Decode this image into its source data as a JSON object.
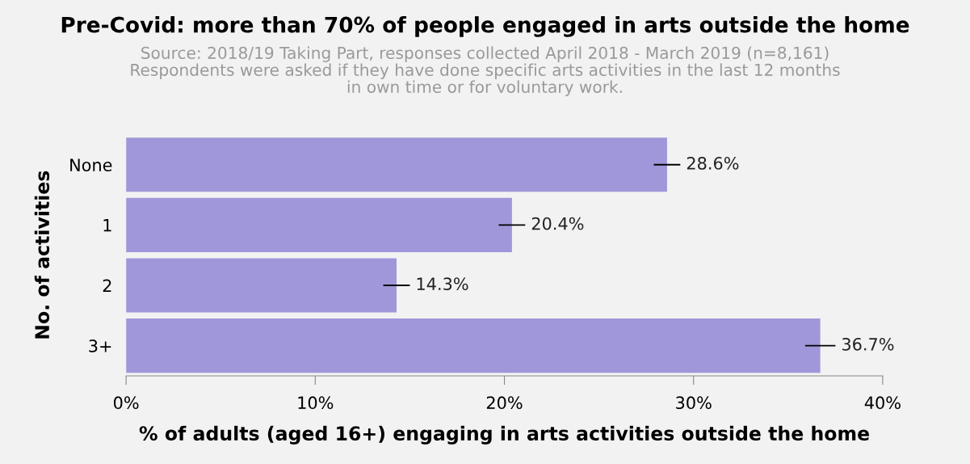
{
  "chart_data": {
    "type": "bar",
    "orientation": "horizontal",
    "title": "Pre-Covid: more than 70% of people engaged in arts outside the home",
    "subtitle": "Source: 2018/19 Taking Part, responses collected April 2018 - March 2019 (n=8,161)\nRespondents were asked if they have done specific arts activities in the last 12 months\nin own time or for voluntary work.",
    "xlabel": "% of adults (aged 16+) engaging in arts activities outside the home",
    "ylabel": "No. of activities",
    "categories": [
      "None",
      "1",
      "2",
      "3+"
    ],
    "values": [
      28.6,
      20.4,
      14.3,
      36.7
    ],
    "errors": [
      0.7,
      0.7,
      0.7,
      0.8
    ],
    "value_labels": [
      "28.6%",
      "20.4%",
      "14.3%",
      "36.7%"
    ],
    "color": "#9f97d9",
    "xlim": [
      0,
      40
    ],
    "xticks": [
      {
        "value": 0,
        "label": "0%"
      },
      {
        "value": 10,
        "label": "10%"
      },
      {
        "value": 20,
        "label": "20%"
      },
      {
        "value": 30,
        "label": "30%"
      },
      {
        "value": 40,
        "label": "40%"
      }
    ],
    "grid": false
  }
}
